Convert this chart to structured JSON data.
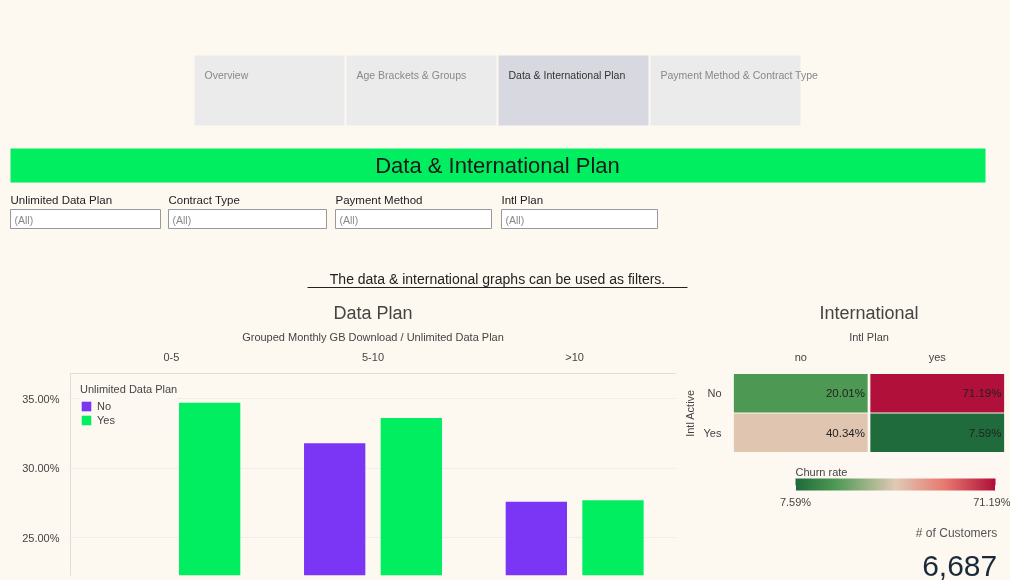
{
  "chart_data": [
    {
      "type": "other",
      "title": "Data & International Plan",
      "annotations": [
        "Overview",
        "Age Brackets & Groups",
        "Data & International Plan",
        "Payment Method & Contract Type",
        "Unlimited Data Plan",
        "(All)",
        "Contract Type",
        "(All)",
        "Payment Method",
        "(All)",
        "Intl Plan",
        "(All)",
        "The data & international graphs can be used as filters."
      ]
    },
    {
      "type": "bar",
      "title": "Data Plan",
      "xlabel": "Grouped Monthly GB Download / Unlimited Data Plan",
      "legend_title": "Unlimited Data Plan",
      "categories": [
        "0-5",
        "5-10",
        ">10"
      ],
      "series": [
        {
          "name": "No",
          "color": "#7b35f5",
          "values": [
            null,
            31.8,
            27.6
          ]
        },
        {
          "name": "Yes",
          "color": "#00ee5f",
          "values": [
            34.7,
            33.6,
            27.7
          ]
        }
      ],
      "ylim": [
        22.3,
        36.8
      ],
      "yticks": [
        {
          "value": 25,
          "label": "25.00%"
        },
        {
          "value": 30,
          "label": "30.00%"
        },
        {
          "value": 35,
          "label": "35.00%"
        }
      ],
      "grid": "y",
      "legend": "top left"
    },
    {
      "type": "heatmap",
      "title": "International",
      "xlabel": "Intl Plan",
      "ylabel": "Intl Active",
      "clabel": "Churn rate",
      "categories": [
        "no",
        "yes"
      ],
      "y_categories": [
        "No",
        "Yes"
      ],
      "cells": [
        [
          20.01,
          71.19
        ],
        [
          40.34,
          7.59
        ]
      ],
      "cell_labels": [
        [
          "20.01%",
          "71.19%"
        ],
        [
          "40.34%",
          "7.59%"
        ]
      ],
      "clim": [
        7.59,
        71.19
      ],
      "cticks": [
        {
          "value": 7.59,
          "label": "7.59%"
        },
        {
          "value": 71.19,
          "label": "71.19%"
        }
      ]
    },
    {
      "type": "other",
      "title": "# of Customers",
      "annotations": [
        "6,687"
      ]
    }
  ]
}
